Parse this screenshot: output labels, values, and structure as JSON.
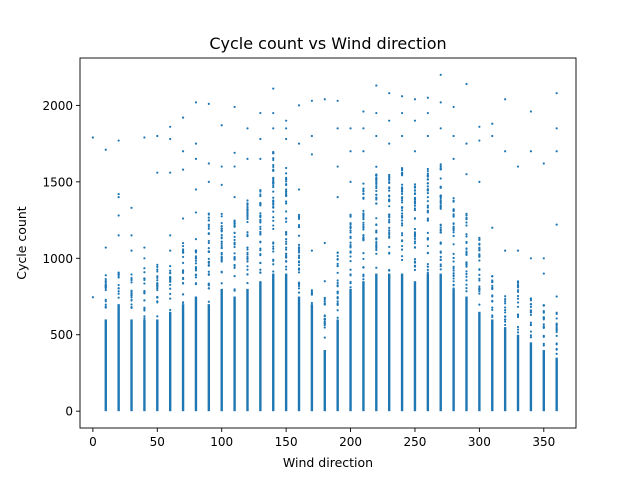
{
  "chart_data": {
    "type": "scatter",
    "title": "Cycle count vs Wind direction",
    "xlabel": "Wind direction",
    "ylabel": "Cycle count",
    "xlim": [
      -10,
      375
    ],
    "ylim": [
      -110,
      2310
    ],
    "x_ticks": [
      0,
      50,
      100,
      150,
      200,
      250,
      300,
      350
    ],
    "y_ticks": [
      0,
      500,
      1000,
      1500,
      2000
    ],
    "grid": false,
    "legend": "none",
    "marker_color": "#1f77b4",
    "columns": [
      {
        "x": 0,
        "dense_max": 0,
        "scatter_max": 0,
        "outliers": [
          745,
          1790
        ]
      },
      {
        "x": 10,
        "dense_max": 600,
        "scatter_max": 890,
        "outliers": [
          1070,
          1710
        ]
      },
      {
        "x": 20,
        "dense_max": 700,
        "scatter_max": 920,
        "outliers": [
          1150,
          1280,
          1400,
          1420,
          1770
        ]
      },
      {
        "x": 30,
        "dense_max": 600,
        "scatter_max": 900,
        "outliers": [
          1050,
          1150,
          1330
        ]
      },
      {
        "x": 40,
        "dense_max": 600,
        "scatter_max": 950,
        "outliers": [
          1000,
          1070,
          1790
        ]
      },
      {
        "x": 50,
        "dense_max": 600,
        "scatter_max": 970,
        "outliers": [
          1560,
          1800
        ]
      },
      {
        "x": 60,
        "dense_max": 650,
        "scatter_max": 950,
        "outliers": [
          1050,
          1150,
          1560,
          1780,
          1860
        ]
      },
      {
        "x": 70,
        "dense_max": 700,
        "scatter_max": 1100,
        "outliers": [
          1260,
          1580,
          1700,
          1920
        ]
      },
      {
        "x": 80,
        "dense_max": 750,
        "scatter_max": 1150,
        "outliers": [
          1300,
          1450,
          1650,
          1750,
          2020
        ]
      },
      {
        "x": 90,
        "dense_max": 700,
        "scatter_max": 1300,
        "outliers": [
          1500,
          1620,
          2010
        ]
      },
      {
        "x": 100,
        "dense_max": 800,
        "scatter_max": 1300,
        "outliers": [
          1480,
          1600,
          1870
        ]
      },
      {
        "x": 110,
        "dense_max": 750,
        "scatter_max": 1250,
        "outliers": [
          1400,
          1600,
          1690,
          1990
        ]
      },
      {
        "x": 120,
        "dense_max": 800,
        "scatter_max": 1400,
        "outliers": [
          1650,
          1850
        ]
      },
      {
        "x": 130,
        "dense_max": 850,
        "scatter_max": 1450,
        "outliers": [
          1650,
          1780,
          1950
        ]
      },
      {
        "x": 140,
        "dense_max": 900,
        "scatter_max": 1700,
        "outliers": [
          1850,
          1950,
          2110
        ]
      },
      {
        "x": 150,
        "dense_max": 900,
        "scatter_max": 1600,
        "outliers": [
          1780,
          1850,
          1900
        ]
      },
      {
        "x": 160,
        "dense_max": 750,
        "scatter_max": 1300,
        "outliers": [
          1450,
          1750,
          2000
        ]
      },
      {
        "x": 170,
        "dense_max": 700,
        "scatter_max": 800,
        "outliers": [
          1050,
          1680,
          1800,
          2030
        ]
      },
      {
        "x": 180,
        "dense_max": 400,
        "scatter_max": 750,
        "outliers": [
          850,
          1100,
          2040
        ]
      },
      {
        "x": 190,
        "dense_max": 600,
        "scatter_max": 1050,
        "outliers": [
          1400,
          1600,
          1850,
          2030
        ]
      },
      {
        "x": 200,
        "dense_max": 800,
        "scatter_max": 1300,
        "outliers": [
          1500,
          1700,
          1850
        ]
      },
      {
        "x": 210,
        "dense_max": 850,
        "scatter_max": 1500,
        "outliers": [
          1700,
          1850,
          1960
        ]
      },
      {
        "x": 220,
        "dense_max": 900,
        "scatter_max": 1600,
        "outliers": [
          1800,
          1950,
          2130
        ]
      },
      {
        "x": 230,
        "dense_max": 900,
        "scatter_max": 1550,
        "outliers": [
          1750,
          1900,
          2080
        ]
      },
      {
        "x": 240,
        "dense_max": 900,
        "scatter_max": 1600,
        "outliers": [
          1800,
          1950,
          2060
        ]
      },
      {
        "x": 250,
        "dense_max": 850,
        "scatter_max": 1500,
        "outliers": [
          1700,
          1900,
          2040
        ]
      },
      {
        "x": 260,
        "dense_max": 900,
        "scatter_max": 1600,
        "outliers": [
          1800,
          1950,
          2050
        ]
      },
      {
        "x": 270,
        "dense_max": 900,
        "scatter_max": 1650,
        "outliers": [
          1850,
          2020,
          2200
        ]
      },
      {
        "x": 280,
        "dense_max": 800,
        "scatter_max": 1450,
        "outliers": [
          1650,
          1800,
          1990
        ]
      },
      {
        "x": 290,
        "dense_max": 750,
        "scatter_max": 1300,
        "outliers": [
          1550,
          1750,
          2140
        ]
      },
      {
        "x": 300,
        "dense_max": 650,
        "scatter_max": 1150,
        "outliers": [
          1500,
          1770,
          1860
        ]
      },
      {
        "x": 310,
        "dense_max": 600,
        "scatter_max": 900,
        "outliers": [
          1200,
          1800,
          1880
        ]
      },
      {
        "x": 320,
        "dense_max": 550,
        "scatter_max": 800,
        "outliers": [
          1050,
          1700,
          2040
        ]
      },
      {
        "x": 330,
        "dense_max": 500,
        "scatter_max": 850,
        "outliers": [
          1050,
          1600
        ]
      },
      {
        "x": 340,
        "dense_max": 450,
        "scatter_max": 750,
        "outliers": [
          1000,
          1700,
          1960
        ]
      },
      {
        "x": 350,
        "dense_max": 400,
        "scatter_max": 700,
        "outliers": [
          900,
          1000,
          1620
        ]
      },
      {
        "x": 360,
        "dense_max": 350,
        "scatter_max": 650,
        "outliers": [
          750,
          1220,
          1700,
          1850,
          2080
        ]
      }
    ]
  }
}
